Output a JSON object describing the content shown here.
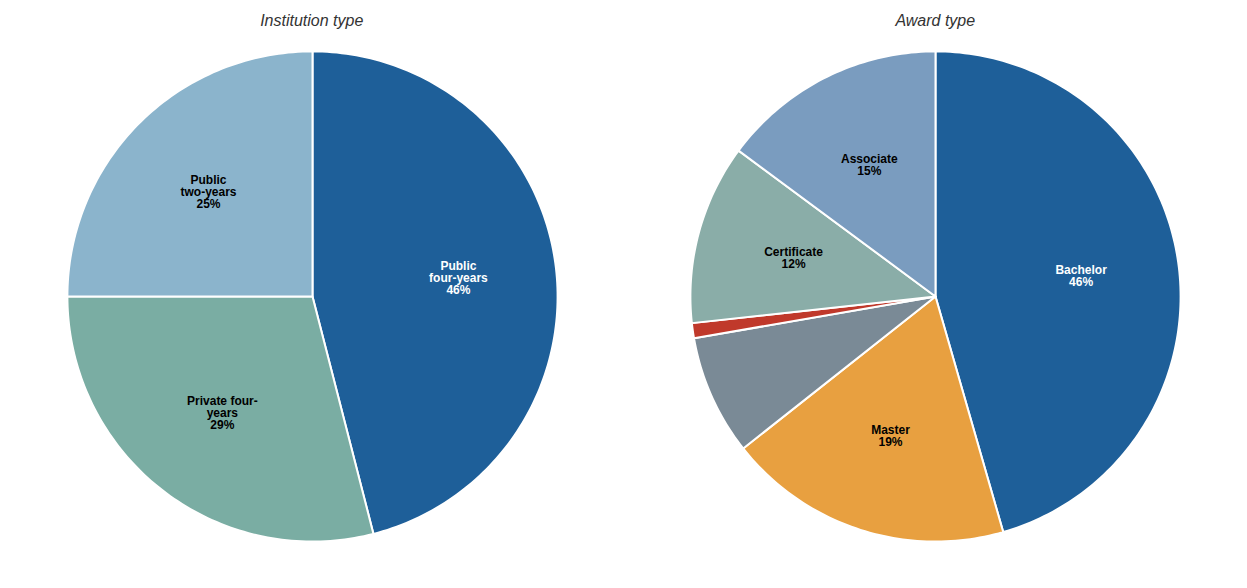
{
  "chart_data": [
    {
      "type": "pie",
      "title": "Institution type",
      "categories": [
        "Public\nfour-years",
        "Private four-\nyears",
        "Public\ntwo-years"
      ],
      "values": [
        46,
        29,
        25
      ],
      "value_labels": [
        "46%",
        "29%",
        "25%"
      ],
      "colors": [
        "#1e5f99",
        "#7aada3",
        "#8bb4cc"
      ],
      "data_labels": true
    },
    {
      "type": "pie",
      "title": "Award type",
      "categories": [
        "Bachelor",
        "Master",
        null,
        null,
        "Certificate",
        "Associate"
      ],
      "values": [
        46,
        19,
        8,
        1,
        12,
        15
      ],
      "value_labels": [
        "46%",
        "19%",
        null,
        null,
        "12%",
        "15%"
      ],
      "colors": [
        "#1e5f99",
        "#e8a040",
        "#7a8a96",
        "#c0392b",
        "#8aada8",
        "#7a9cbf"
      ],
      "data_labels": true
    }
  ]
}
